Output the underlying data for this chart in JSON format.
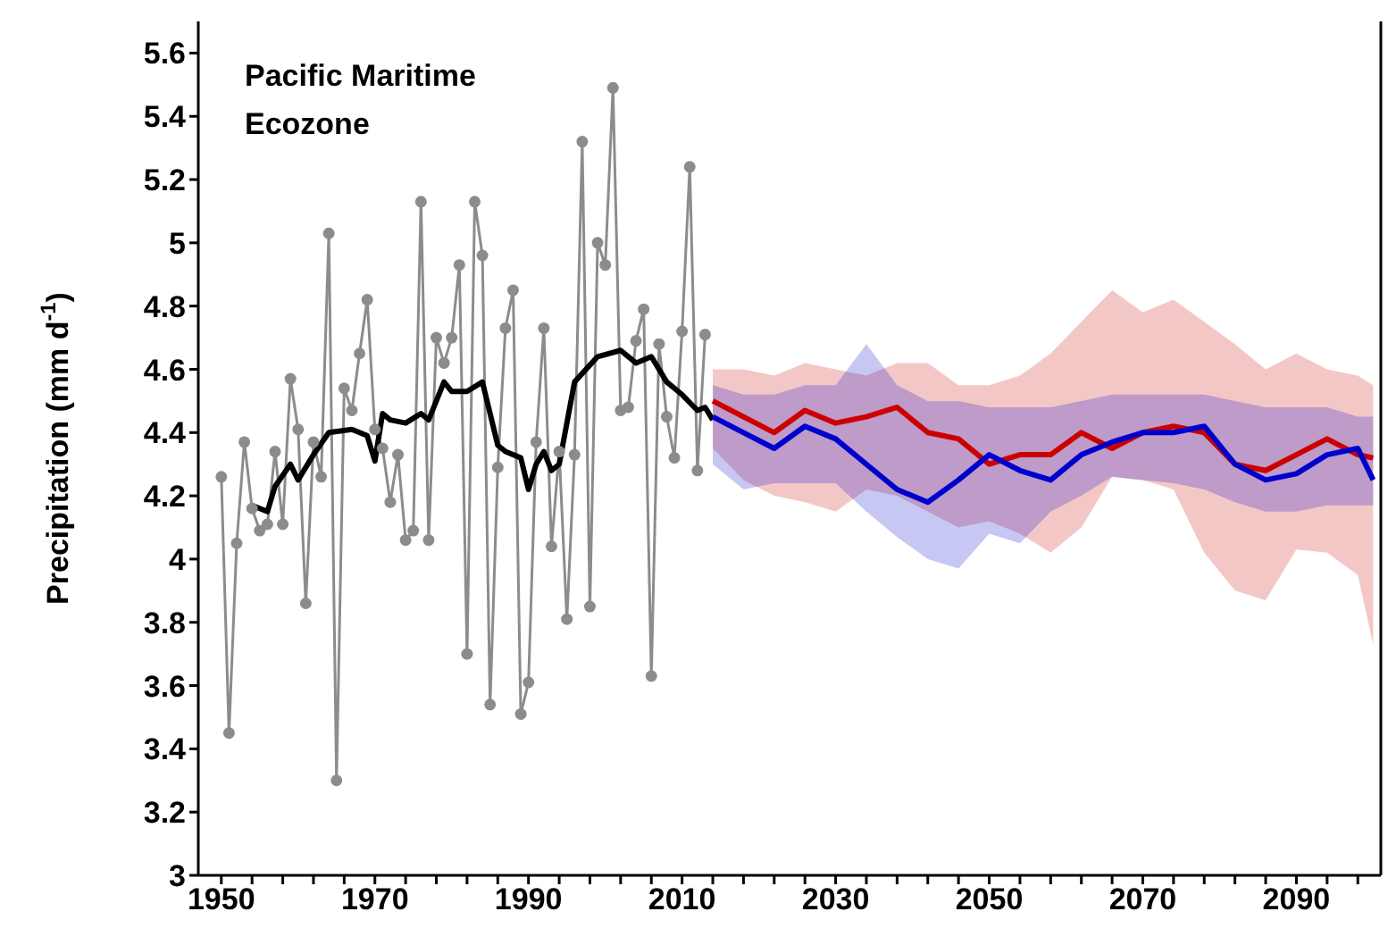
{
  "chart_data": {
    "type": "line",
    "title": "Pacific Maritime Ecozone",
    "ylabel": "Precipitation (mm d$^{-1}$)",
    "xlim": [
      1947,
      2101
    ],
    "ylim": [
      3,
      5.7
    ],
    "xticks": [
      1950,
      {
        "value": 1954,
        "label": null
      },
      {
        "value": 1958,
        "label": null
      },
      {
        "value": 1962,
        "label": null
      },
      {
        "value": 1966,
        "label": null
      },
      1970,
      {
        "value": 1974,
        "label": null
      },
      {
        "value": 1978,
        "label": null
      },
      {
        "value": 1982,
        "label": null
      },
      {
        "value": 1986,
        "label": null
      },
      1990,
      {
        "value": 1994,
        "label": null
      },
      {
        "value": 1998,
        "label": null
      },
      {
        "value": 2002,
        "label": null
      },
      {
        "value": 2006,
        "label": null
      },
      2010,
      {
        "value": 2014,
        "label": null
      },
      {
        "value": 2018,
        "label": null
      },
      {
        "value": 2022,
        "label": null
      },
      {
        "value": 2026,
        "label": null
      },
      2030,
      {
        "value": 2034,
        "label": null
      },
      {
        "value": 2038,
        "label": null
      },
      {
        "value": 2042,
        "label": null
      },
      {
        "value": 2046,
        "label": null
      },
      2050,
      {
        "value": 2054,
        "label": null
      },
      {
        "value": 2058,
        "label": null
      },
      {
        "value": 2062,
        "label": null
      },
      {
        "value": 2066,
        "label": null
      },
      2070,
      {
        "value": 2074,
        "label": null
      },
      {
        "value": 2078,
        "label": null
      },
      {
        "value": 2082,
        "label": null
      },
      {
        "value": 2086,
        "label": null
      },
      2090,
      {
        "value": 2094,
        "label": null
      },
      {
        "value": 2098,
        "label": null
      }
    ],
    "yticks": [
      3,
      3.2,
      3.4,
      3.6,
      3.8,
      4,
      4.2,
      4.4,
      4.6,
      4.8,
      5,
      5.2,
      5.4,
      5.6
    ],
    "grid": false,
    "legend": false,
    "series": [
      {
        "color": "#8c8c8c",
        "marker": "circle",
        "x": [
          1950,
          1951,
          1952,
          1953,
          1954,
          1955,
          1956,
          1957,
          1958,
          1959,
          1960,
          1961,
          1962,
          1963,
          1964,
          1965,
          1966,
          1967,
          1968,
          1969,
          1970,
          1971,
          1972,
          1973,
          1974,
          1975,
          1976,
          1977,
          1978,
          1979,
          1980,
          1981,
          1982,
          1983,
          1984,
          1985,
          1986,
          1987,
          1988,
          1989,
          1990,
          1991,
          1992,
          1993,
          1994,
          1995,
          1996,
          1997,
          1998,
          1999,
          2000,
          2001,
          2002,
          2003,
          2004,
          2005,
          2006,
          2007,
          2008,
          2009,
          2010,
          2011,
          2012,
          2013
        ],
        "values": [
          4.26,
          3.45,
          4.05,
          4.37,
          4.16,
          4.09,
          4.11,
          4.34,
          4.11,
          4.57,
          4.41,
          3.86,
          4.37,
          4.26,
          5.03,
          3.3,
          4.54,
          4.47,
          4.65,
          4.82,
          4.41,
          4.35,
          4.18,
          4.33,
          4.06,
          4.09,
          5.13,
          4.06,
          4.7,
          4.62,
          4.7,
          4.93,
          3.7,
          5.13,
          4.96,
          3.54,
          4.29,
          4.73,
          4.85,
          3.51,
          3.61,
          4.37,
          4.73,
          4.04,
          4.34,
          3.81,
          4.33,
          5.32,
          3.85,
          5.0,
          4.93,
          5.49,
          4.47,
          4.48,
          4.69,
          4.79,
          3.63,
          4.68,
          4.45,
          4.32,
          4.72,
          5.24,
          4.28,
          4.71
        ]
      },
      {
        "color": "#000000",
        "marker": "none",
        "x": [
          1954,
          1956,
          1957,
          1959,
          1960,
          1962,
          1964,
          1967,
          1969,
          1970,
          1971,
          1972,
          1974,
          1976,
          1977,
          1979,
          1980,
          1982,
          1984,
          1985,
          1986,
          1987,
          1989,
          1990,
          1991,
          1992,
          1993,
          1994,
          1996,
          1999,
          2002,
          2004,
          2006,
          2008,
          2010,
          2012,
          2013,
          2014
        ],
        "values": [
          4.17,
          4.15,
          4.23,
          4.3,
          4.25,
          4.33,
          4.4,
          4.41,
          4.39,
          4.31,
          4.46,
          4.44,
          4.43,
          4.46,
          4.44,
          4.56,
          4.53,
          4.53,
          4.56,
          4.46,
          4.36,
          4.34,
          4.32,
          4.22,
          4.3,
          4.34,
          4.28,
          4.3,
          4.56,
          4.64,
          4.66,
          4.62,
          4.64,
          4.56,
          4.52,
          4.47,
          4.48,
          4.44
        ]
      },
      {
        "color": "#cc0000",
        "marker": "none",
        "x": [
          2014,
          2018,
          2022,
          2026,
          2030,
          2034,
          2038,
          2042,
          2046,
          2050,
          2054,
          2058,
          2062,
          2066,
          2070,
          2074,
          2078,
          2082,
          2086,
          2090,
          2094,
          2098,
          2100
        ],
        "values": [
          4.5,
          4.45,
          4.4,
          4.47,
          4.43,
          4.45,
          4.48,
          4.4,
          4.38,
          4.3,
          4.33,
          4.33,
          4.4,
          4.35,
          4.4,
          4.42,
          4.4,
          4.3,
          4.28,
          4.33,
          4.38,
          4.33,
          4.32
        ],
        "lower": [
          4.35,
          4.25,
          4.2,
          4.18,
          4.15,
          4.22,
          4.2,
          4.15,
          4.1,
          4.12,
          4.08,
          4.02,
          4.1,
          4.26,
          4.25,
          4.22,
          4.02,
          3.9,
          3.87,
          4.03,
          4.02,
          3.95,
          3.73
        ],
        "upper": [
          4.6,
          4.6,
          4.58,
          4.62,
          4.6,
          4.58,
          4.62,
          4.62,
          4.55,
          4.55,
          4.58,
          4.65,
          4.75,
          4.85,
          4.78,
          4.82,
          4.75,
          4.68,
          4.6,
          4.65,
          4.6,
          4.58,
          4.55
        ]
      },
      {
        "color": "#0000cc",
        "marker": "none",
        "x": [
          2014,
          2018,
          2022,
          2026,
          2030,
          2034,
          2038,
          2042,
          2046,
          2050,
          2054,
          2058,
          2062,
          2066,
          2070,
          2074,
          2078,
          2082,
          2086,
          2090,
          2094,
          2098,
          2100
        ],
        "values": [
          4.45,
          4.4,
          4.35,
          4.42,
          4.38,
          4.3,
          4.22,
          4.18,
          4.25,
          4.33,
          4.28,
          4.25,
          4.33,
          4.37,
          4.4,
          4.4,
          4.42,
          4.3,
          4.25,
          4.27,
          4.33,
          4.35,
          4.25
        ],
        "lower": [
          4.3,
          4.22,
          4.24,
          4.24,
          4.24,
          4.15,
          4.07,
          4.0,
          3.97,
          4.08,
          4.05,
          4.15,
          4.2,
          4.26,
          4.25,
          4.24,
          4.22,
          4.18,
          4.15,
          4.15,
          4.17,
          4.17,
          4.17
        ],
        "upper": [
          4.55,
          4.52,
          4.52,
          4.55,
          4.55,
          4.68,
          4.55,
          4.5,
          4.5,
          4.48,
          4.48,
          4.48,
          4.5,
          4.52,
          4.52,
          4.52,
          4.52,
          4.5,
          4.48,
          4.48,
          4.48,
          4.45,
          4.45
        ]
      }
    ]
  }
}
